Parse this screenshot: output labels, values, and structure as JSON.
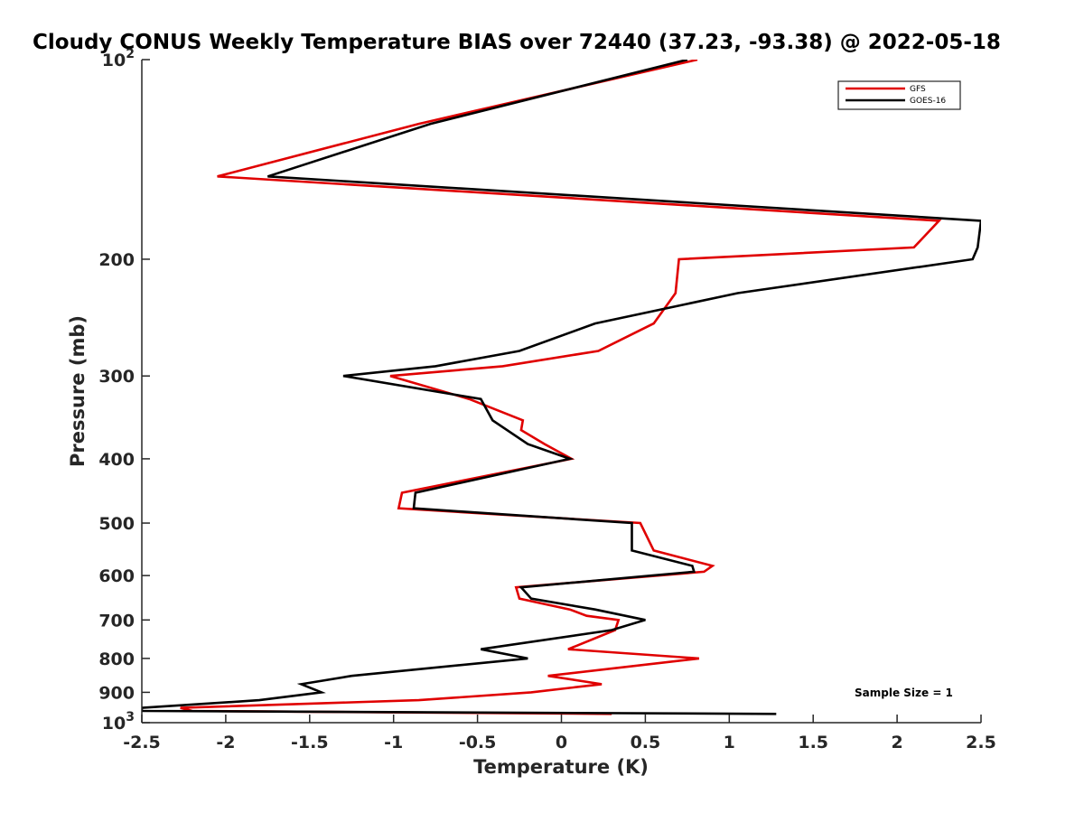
{
  "chart_data": {
    "type": "line",
    "title": "Cloudy CONUS Weekly Temperature BIAS over 72440 (37.23, -93.38) @ 2022-05-18",
    "xlabel": "Temperature (K)",
    "ylabel": "Pressure (mb)",
    "xlim": [
      -2.5,
      2.5
    ],
    "ylim": [
      100,
      1000
    ],
    "y_scale": "log",
    "y_reversed": true,
    "grid": false,
    "legend_position": "top-right",
    "x_ticks": [
      "-2.5",
      "-2",
      "-1.5",
      "-1",
      "-0.5",
      "0",
      "0.5",
      "1",
      "1.5",
      "2",
      "2.5"
    ],
    "y_ticks": [
      {
        "value": 100,
        "label": "10",
        "sup": "2"
      },
      {
        "value": 200,
        "label": "200",
        "sup": ""
      },
      {
        "value": 300,
        "label": "300",
        "sup": ""
      },
      {
        "value": 400,
        "label": "400",
        "sup": ""
      },
      {
        "value": 500,
        "label": "500",
        "sup": ""
      },
      {
        "value": 600,
        "label": "600",
        "sup": ""
      },
      {
        "value": 700,
        "label": "700",
        "sup": ""
      },
      {
        "value": 800,
        "label": "800",
        "sup": ""
      },
      {
        "value": 900,
        "label": "900",
        "sup": ""
      },
      {
        "value": 1000,
        "label": "10",
        "sup": "3"
      }
    ],
    "annotation": "Sample Size = 1",
    "series": [
      {
        "name": "GFS",
        "color": "#e00000",
        "points": [
          [
            0.81,
            100
          ],
          [
            -0.85,
            125
          ],
          [
            -2.05,
            150
          ],
          [
            2.25,
            175
          ],
          [
            2.1,
            192
          ],
          [
            0.7,
            200
          ],
          [
            0.68,
            225
          ],
          [
            0.55,
            250
          ],
          [
            0.22,
            275
          ],
          [
            -0.35,
            290
          ],
          [
            -1.02,
            300
          ],
          [
            -0.55,
            325
          ],
          [
            -0.23,
            350
          ],
          [
            -0.24,
            362
          ],
          [
            -0.1,
            380
          ],
          [
            0.06,
            400
          ],
          [
            -0.95,
            450
          ],
          [
            -0.97,
            475
          ],
          [
            0.47,
            500
          ],
          [
            0.55,
            550
          ],
          [
            0.9,
            580
          ],
          [
            0.85,
            592
          ],
          [
            -0.27,
            625
          ],
          [
            -0.25,
            650
          ],
          [
            0.05,
            675
          ],
          [
            0.15,
            690
          ],
          [
            0.34,
            700
          ],
          [
            0.32,
            725
          ],
          [
            0.04,
            775
          ],
          [
            0.82,
            800
          ],
          [
            -0.08,
            850
          ],
          [
            0.24,
            875
          ],
          [
            -0.18,
            900
          ],
          [
            -0.85,
            925
          ],
          [
            -2.27,
            950
          ],
          [
            -2.2,
            960
          ],
          [
            0.3,
            970
          ]
        ]
      },
      {
        "name": "GOES-16",
        "color": "#000000",
        "points": [
          [
            0.75,
            100
          ],
          [
            -0.78,
            125
          ],
          [
            -1.75,
            150
          ],
          [
            2.5,
            175
          ],
          [
            2.48,
            192
          ],
          [
            2.45,
            200
          ],
          [
            1.05,
            225
          ],
          [
            0.2,
            250
          ],
          [
            -0.25,
            275
          ],
          [
            -0.75,
            290
          ],
          [
            -1.3,
            300
          ],
          [
            -0.48,
            325
          ],
          [
            -0.41,
            350
          ],
          [
            -0.2,
            380
          ],
          [
            0.05,
            400
          ],
          [
            -0.87,
            450
          ],
          [
            -0.88,
            475
          ],
          [
            0.42,
            500
          ],
          [
            0.42,
            550
          ],
          [
            0.78,
            580
          ],
          [
            0.79,
            592
          ],
          [
            -0.24,
            625
          ],
          [
            -0.18,
            650
          ],
          [
            0.2,
            675
          ],
          [
            0.5,
            700
          ],
          [
            0.3,
            725
          ],
          [
            -0.48,
            775
          ],
          [
            -0.2,
            800
          ],
          [
            -1.25,
            850
          ],
          [
            -1.55,
            875
          ],
          [
            -1.43,
            900
          ],
          [
            -1.8,
            925
          ],
          [
            -2.5,
            950
          ],
          [
            -2.5,
            960
          ],
          [
            1.28,
            970
          ]
        ]
      }
    ]
  }
}
